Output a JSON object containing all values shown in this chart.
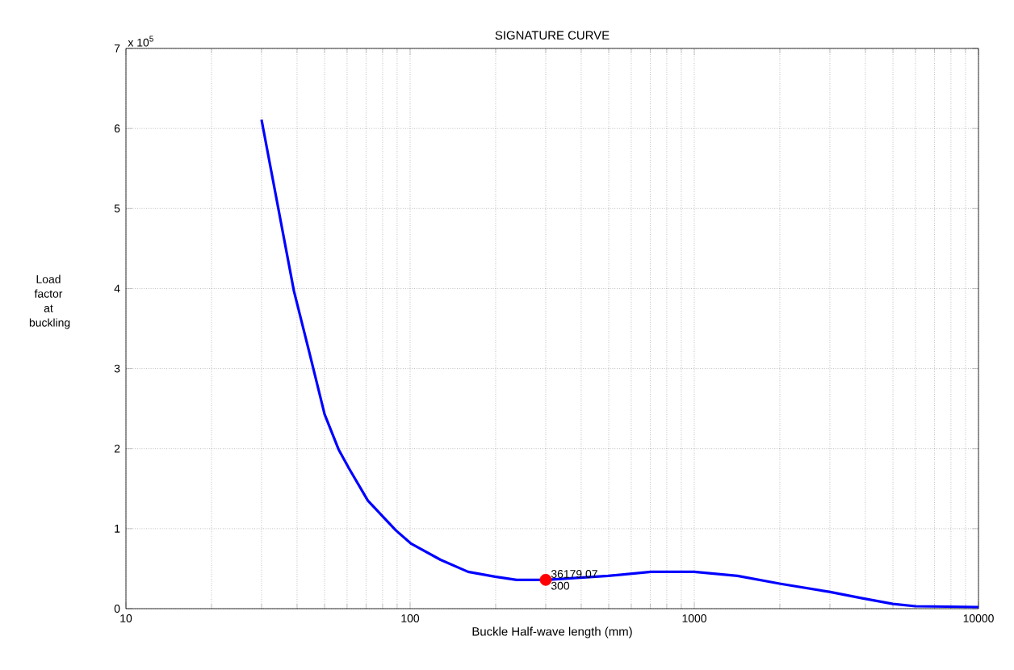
{
  "chart_data": {
    "type": "line",
    "title": "SIGNATURE CURVE",
    "xlabel": "Buckle Half-wave length (mm)",
    "ylabel": "Load factor at buckling",
    "log": "x",
    "grid": true,
    "xlim": [
      10,
      10000
    ],
    "xticks": [
      10,
      100,
      1000,
      10000
    ],
    "ylim": [
      0,
      7
    ],
    "yticks": [
      0,
      1,
      2,
      3,
      4,
      5,
      6,
      7
    ],
    "series": [
      {
        "color": "#0000ff",
        "x": [
          30,
          39,
          44,
          50,
          56,
          61,
          71,
          89,
          101,
          128,
          160,
          199,
          237,
          300,
          498,
          704,
          1000,
          1419,
          2014,
          2985,
          3900,
          5000,
          6000,
          10000
        ],
        "values": [
          6.11,
          3.97,
          3.23,
          2.43,
          1.99,
          1.75,
          1.35,
          0.98,
          0.81,
          0.61,
          0.46,
          0.4,
          0.36,
          0.36,
          0.41,
          0.46,
          0.46,
          0.41,
          0.31,
          0.21,
          0.13,
          0.06,
          0.03,
          0.02
        ]
      },
      {
        "type": "scatter",
        "color": "#ff0000",
        "marker": "circle",
        "x": [
          300
        ],
        "values": [
          0.36
        ]
      }
    ],
    "annotations": [
      "x 10$^{5}$",
      {
        "text": "36179.07",
        "x": 300,
        "y": 0.36
      },
      {
        "text": "300",
        "x": 300,
        "y": 0.36
      }
    ]
  }
}
